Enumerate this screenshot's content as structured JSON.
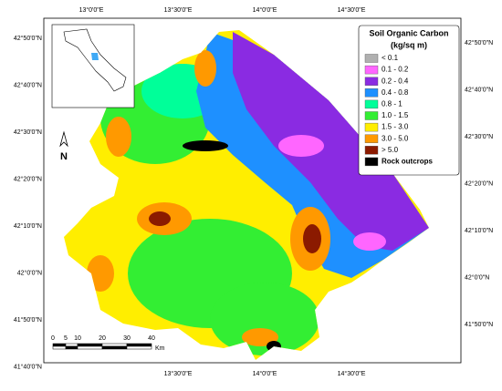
{
  "map": {
    "top_ticks": [
      "13°0'0\"E",
      "13°30'0\"E",
      "14°0'0\"E",
      "14°30'0\"E"
    ],
    "bottom_ticks": [
      "13°30'0\"E",
      "14°0'0\"E",
      "14°30'0\"E"
    ],
    "left_ticks": [
      "42°50'0\"N",
      "42°40'0\"N",
      "42°30'0\"N",
      "42°20'0\"N",
      "42°10'0\"N",
      "42°0'0\"N",
      "41°50'0\"N",
      "41°40'0\"N"
    ],
    "right_ticks": [
      "42°50'0\"N",
      "42°40'0\"N",
      "42°30'0\"N",
      "42°20'0\"N",
      "42°10'0\"N",
      "42°0'0\"N",
      "41°50'0\"N"
    ],
    "legend": {
      "title": "Soil Organic Carbon",
      "subtitle": "(kg/sq m)",
      "items": [
        {
          "label": "< 0.1",
          "color": "#b0b0b0"
        },
        {
          "label": "0.1 - 0.2",
          "color": "#ff66ff"
        },
        {
          "label": "0.2 - 0.4",
          "color": "#8a2be2"
        },
        {
          "label": "0.4 - 0.8",
          "color": "#1e90ff"
        },
        {
          "label": "0.8 - 1",
          "color": "#00ff99"
        },
        {
          "label": "1.0 - 1.5",
          "color": "#33ee33"
        },
        {
          "label": "1.5 - 3.0",
          "color": "#ffee00"
        },
        {
          "label": "3.0 - 5.0",
          "color": "#ff9900"
        },
        {
          "label": "> 5.0",
          "color": "#8b1a00"
        },
        {
          "label": "Rock outcrops",
          "color": "#000000"
        }
      ]
    },
    "north": "N",
    "scale_labels": [
      "0",
      "5",
      "10",
      "20",
      "30",
      "40"
    ],
    "scale_unit": "Km"
  }
}
